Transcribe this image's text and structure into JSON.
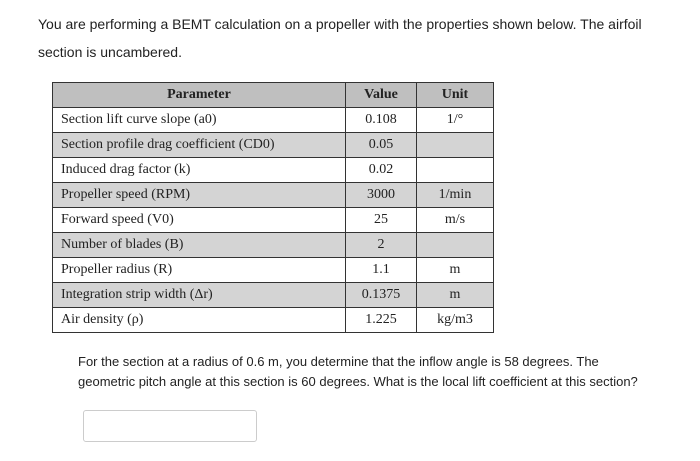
{
  "intro": "You are performing a BEMT calculation on a propeller with the properties shown below. The airfoil section is uncambered.",
  "table": {
    "header": [
      "Parameter",
      "Value",
      "Unit"
    ],
    "rows": [
      {
        "parameter": "Section lift curve slope (a0)",
        "value": "0.108",
        "unit": "1/°"
      },
      {
        "parameter": "Section profile drag coefficient (CD0)",
        "value": "0.05"
      },
      {
        "parameter": "Induced drag factor (k)",
        "value": "0.02"
      },
      {
        "parameter": "Propeller speed (RPM)",
        "value": "3000",
        "unit": "1/min"
      },
      {
        "parameter": "Forward speed (V0)",
        "value": "25",
        "unit": "m/s"
      },
      {
        "parameter": "Number of blades (B)",
        "value": "2"
      },
      {
        "parameter": "Propeller radius (R)",
        "value": "1.1",
        "unit": "m"
      },
      {
        "parameter": "Integration strip width (Δr)",
        "value": "0.1375",
        "unit": "m"
      },
      {
        "parameter": "Air density (ρ)",
        "value": "1.225",
        "unit": "kg/m3"
      }
    ]
  },
  "question": "For the section at a radius of 0.6 m, you determine that the inflow angle is 58 degrees. The geometric pitch angle at this section is 60 degrees. What is the local lift coefficient at this section?"
}
